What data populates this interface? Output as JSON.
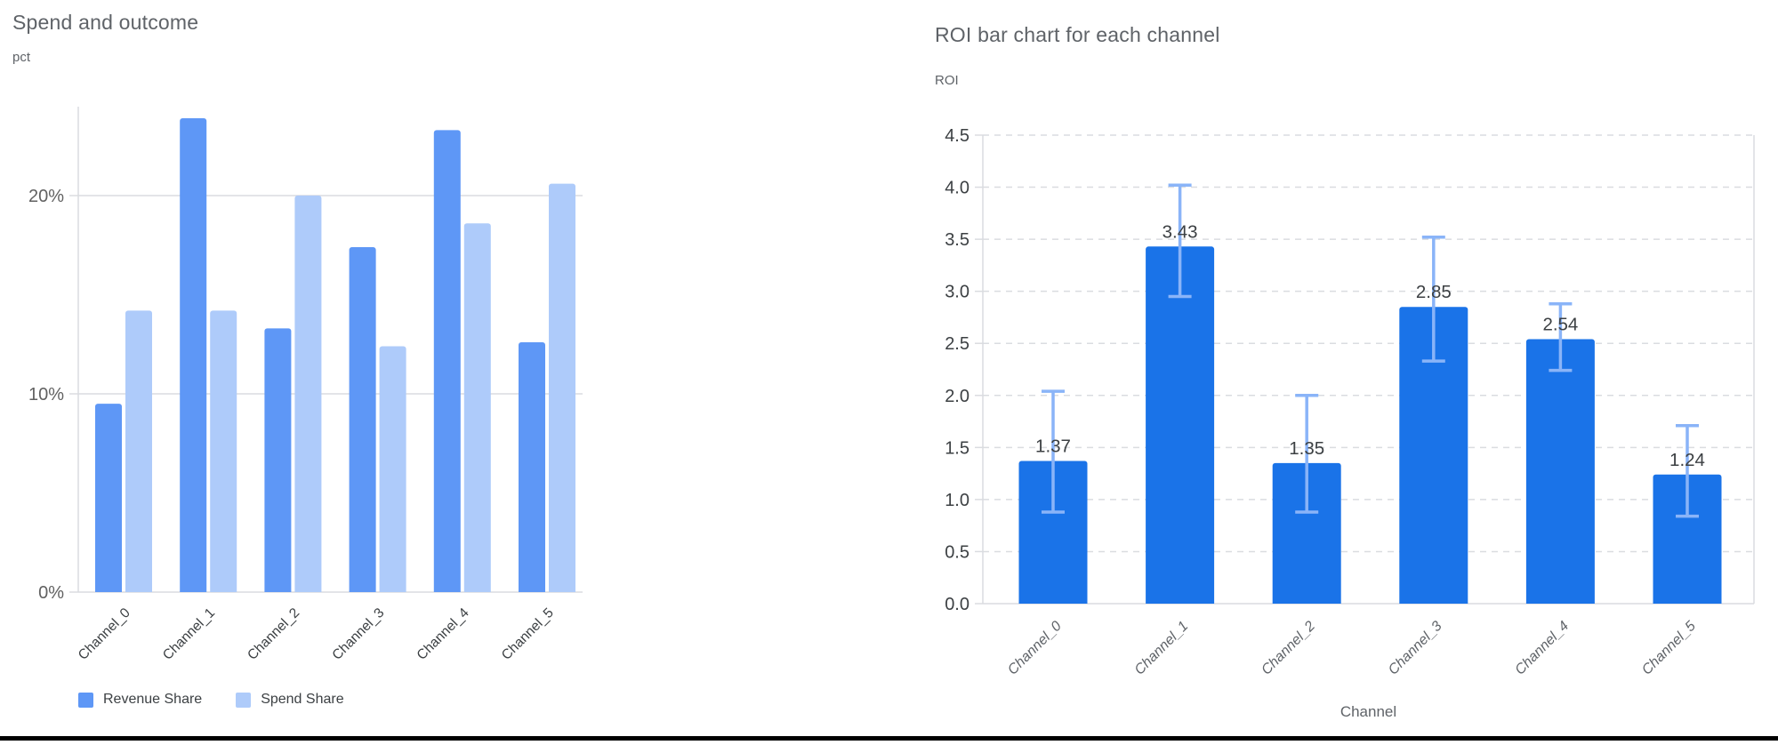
{
  "theme": {
    "background": "#ffffff",
    "title_color": "#5f6368",
    "axis_unit_color": "#5f6368",
    "grid_color": "#dadce0",
    "left_tick_label_color": "#616161",
    "right_tick_label_color": "#3c4043",
    "left_category_label_color": "#3c4043",
    "right_category_label_color": "#5f6368",
    "bar_value_label_color": "#3c4043",
    "bottom_border_color": "#000000"
  },
  "chart_data": [
    {
      "type": "bar",
      "subtype": "grouped",
      "title": "Spend and outcome",
      "ylabel": "pct",
      "xlabel": "",
      "categories": [
        "Channel_0",
        "Channel_1",
        "Channel_2",
        "Channel_3",
        "Channel_4",
        "Channel_5"
      ],
      "series": [
        {
          "name": "Revenue Share",
          "color": "#5e97f6",
          "values": [
            9.5,
            23.9,
            13.3,
            17.4,
            23.3,
            12.6
          ]
        },
        {
          "name": "Spend Share",
          "color": "#aecbfa",
          "values": [
            14.2,
            14.2,
            20.0,
            12.4,
            18.6,
            20.6
          ]
        }
      ],
      "ylim": [
        0,
        25
      ],
      "yticks": [
        {
          "value": 0,
          "label": "0%"
        },
        {
          "value": 10,
          "label": "10%"
        },
        {
          "value": 20,
          "label": "20%"
        }
      ],
      "grid": "solid",
      "legend_position": "bottom-left"
    },
    {
      "type": "bar",
      "subtype": "error-bars",
      "title": "ROI bar chart for each channel",
      "ylabel": "ROI",
      "xlabel": "Channel",
      "categories": [
        "Channel_0",
        "Channel_1",
        "Channel_2",
        "Channel_3",
        "Channel_4",
        "Channel_5"
      ],
      "series": [
        {
          "name": "ROI",
          "color": "#1a73e8",
          "values": [
            1.37,
            3.43,
            1.35,
            2.85,
            2.54,
            1.24
          ]
        }
      ],
      "bar_labels": [
        "1.37",
        "3.43",
        "1.35",
        "2.85",
        "2.54",
        "1.24"
      ],
      "error_bars": {
        "color": "#8ab4f8",
        "low": [
          0.88,
          2.95,
          0.88,
          2.33,
          2.24,
          0.84
        ],
        "high": [
          2.04,
          4.02,
          2.0,
          3.52,
          2.88,
          1.71
        ]
      },
      "ylim": [
        0,
        4.5
      ],
      "yticks": [
        {
          "value": 0.0,
          "label": "0.0"
        },
        {
          "value": 0.5,
          "label": "0.5"
        },
        {
          "value": 1.0,
          "label": "1.0"
        },
        {
          "value": 1.5,
          "label": "1.5"
        },
        {
          "value": 2.0,
          "label": "2.0"
        },
        {
          "value": 2.5,
          "label": "2.5"
        },
        {
          "value": 3.0,
          "label": "3.0"
        },
        {
          "value": 3.5,
          "label": "3.5"
        },
        {
          "value": 4.0,
          "label": "4.0"
        },
        {
          "value": 4.5,
          "label": "4.5"
        }
      ],
      "grid": "dashed",
      "legend_position": "none"
    }
  ]
}
